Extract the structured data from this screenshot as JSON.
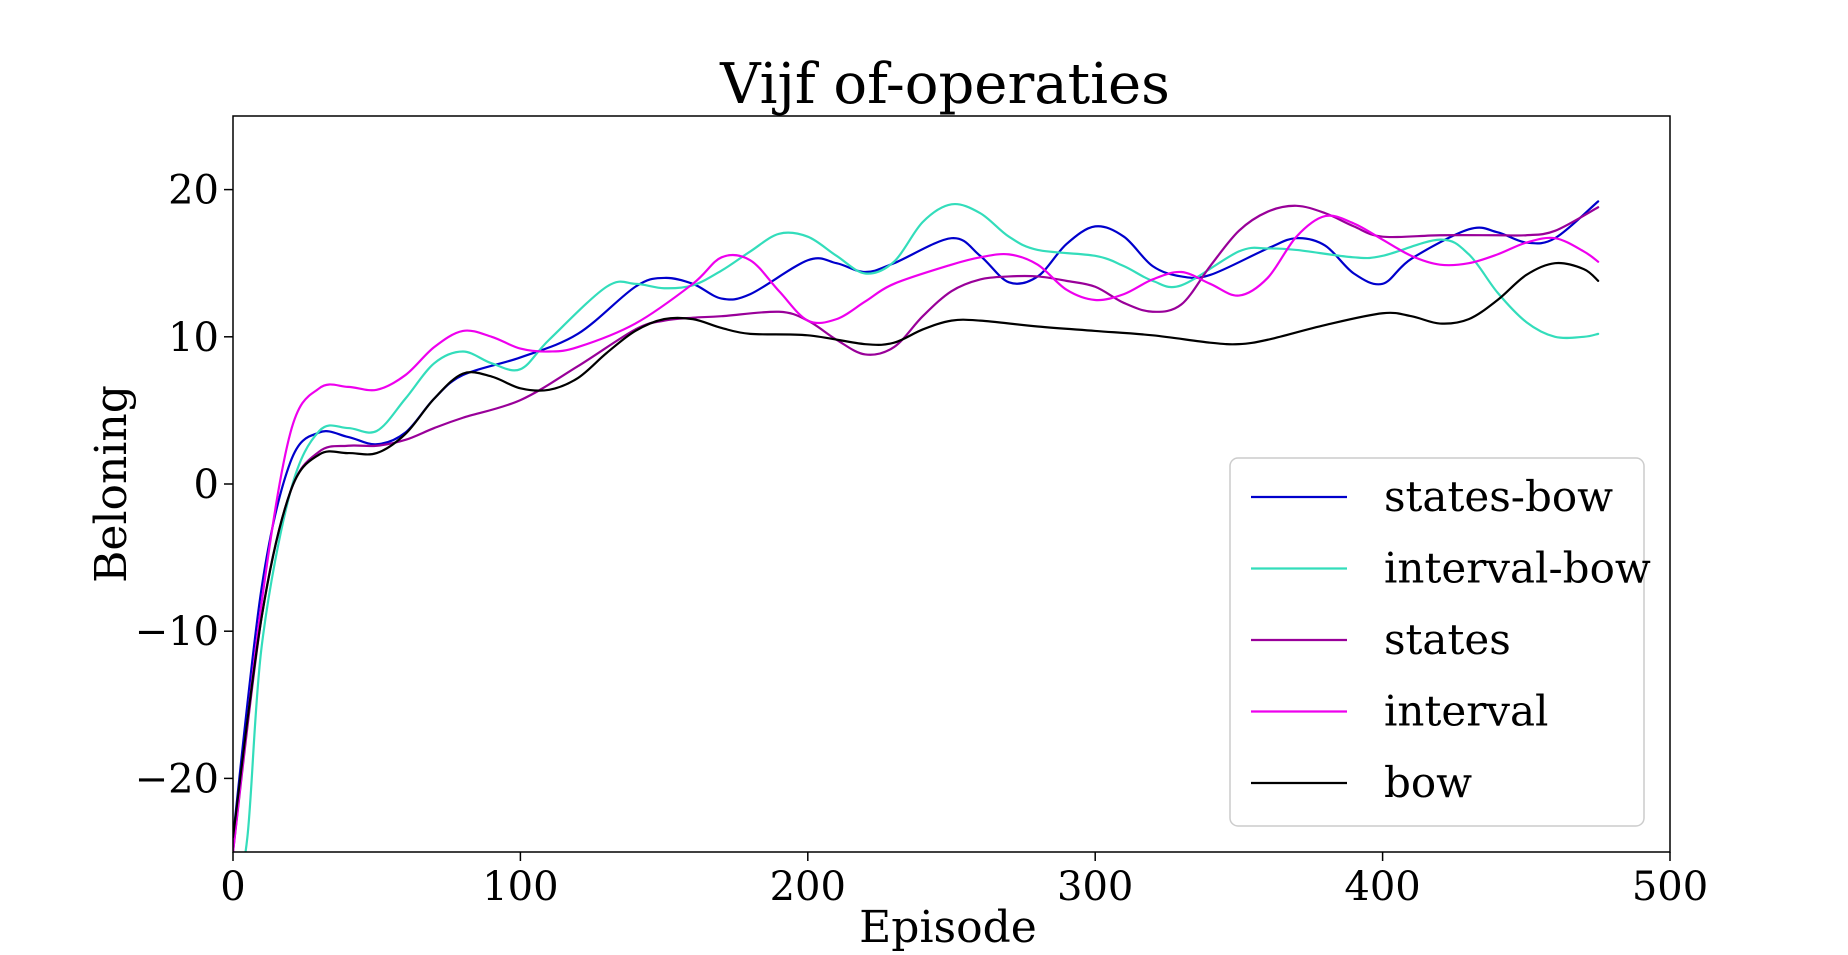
{
  "chart_data": {
    "type": "line",
    "title": "Vijf of-operaties",
    "xlabel": "Episode",
    "ylabel": "Beloning",
    "xlim": [
      0,
      500
    ],
    "ylim": [
      -25,
      25
    ],
    "xticks": [
      "0",
      "100",
      "200",
      "300",
      "400",
      "500"
    ],
    "xtick_values": [
      0,
      100,
      200,
      300,
      400,
      500
    ],
    "yticks": [
      "−20",
      "−10",
      "0",
      "10",
      "20"
    ],
    "ytick_values": [
      -20,
      -10,
      0,
      10,
      20
    ],
    "grid": false,
    "legend_position": "lower-right",
    "series": [
      {
        "name": "states-bow",
        "color": "#0000cc",
        "points": [
          [
            0,
            -24
          ],
          [
            10,
            -7
          ],
          [
            20,
            1.5
          ],
          [
            30,
            3.5
          ],
          [
            40,
            3.2
          ],
          [
            50,
            2.7
          ],
          [
            60,
            3.5
          ],
          [
            70,
            5.8
          ],
          [
            80,
            7.4
          ],
          [
            100,
            8.6
          ],
          [
            120,
            10.2
          ],
          [
            140,
            13.4
          ],
          [
            150,
            14
          ],
          [
            160,
            13.6
          ],
          [
            170,
            12.6
          ],
          [
            180,
            12.9
          ],
          [
            200,
            15.2
          ],
          [
            210,
            15
          ],
          [
            220,
            14.4
          ],
          [
            230,
            15
          ],
          [
            250,
            16.7
          ],
          [
            260,
            15.5
          ],
          [
            270,
            13.7
          ],
          [
            280,
            14.1
          ],
          [
            290,
            16.3
          ],
          [
            300,
            17.5
          ],
          [
            310,
            16.8
          ],
          [
            320,
            14.8
          ],
          [
            330,
            14.1
          ],
          [
            340,
            14.2
          ],
          [
            360,
            16
          ],
          [
            370,
            16.7
          ],
          [
            380,
            16.2
          ],
          [
            390,
            14.3
          ],
          [
            400,
            13.6
          ],
          [
            410,
            15.3
          ],
          [
            430,
            17.3
          ],
          [
            440,
            17.1
          ],
          [
            450,
            16.4
          ],
          [
            460,
            16.7
          ],
          [
            475,
            19.2
          ]
        ]
      },
      {
        "name": "interval-bow",
        "color": "#33ddbb",
        "points": [
          [
            0,
            -29
          ],
          [
            5,
            -24
          ],
          [
            10,
            -11
          ],
          [
            20,
            -0.5
          ],
          [
            30,
            3.6
          ],
          [
            40,
            3.8
          ],
          [
            50,
            3.6
          ],
          [
            60,
            5.8
          ],
          [
            70,
            8.2
          ],
          [
            80,
            9
          ],
          [
            90,
            8.2
          ],
          [
            100,
            7.8
          ],
          [
            110,
            9.8
          ],
          [
            130,
            13.4
          ],
          [
            140,
            13.6
          ],
          [
            150,
            13.3
          ],
          [
            160,
            13.5
          ],
          [
            170,
            14.5
          ],
          [
            180,
            15.8
          ],
          [
            190,
            17
          ],
          [
            200,
            16.8
          ],
          [
            210,
            15.5
          ],
          [
            220,
            14.3
          ],
          [
            230,
            15.1
          ],
          [
            240,
            17.8
          ],
          [
            250,
            19
          ],
          [
            260,
            18.4
          ],
          [
            270,
            16.8
          ],
          [
            280,
            15.9
          ],
          [
            300,
            15.5
          ],
          [
            310,
            14.8
          ],
          [
            320,
            13.8
          ],
          [
            330,
            13.5
          ],
          [
            350,
            15.8
          ],
          [
            360,
            16
          ],
          [
            370,
            15.9
          ],
          [
            390,
            15.4
          ],
          [
            400,
            15.5
          ],
          [
            420,
            16.6
          ],
          [
            430,
            15.6
          ],
          [
            440,
            13
          ],
          [
            450,
            11
          ],
          [
            460,
            10
          ],
          [
            470,
            10
          ],
          [
            475,
            10.2
          ]
        ]
      },
      {
        "name": "states",
        "color": "#990099",
        "points": [
          [
            0,
            -25
          ],
          [
            10,
            -9
          ],
          [
            20,
            -0.5
          ],
          [
            30,
            2.2
          ],
          [
            40,
            2.6
          ],
          [
            50,
            2.6
          ],
          [
            60,
            3
          ],
          [
            70,
            3.8
          ],
          [
            80,
            4.5
          ],
          [
            100,
            5.7
          ],
          [
            120,
            8
          ],
          [
            140,
            10.5
          ],
          [
            150,
            11.1
          ],
          [
            160,
            11.3
          ],
          [
            170,
            11.4
          ],
          [
            190,
            11.7
          ],
          [
            200,
            11.1
          ],
          [
            210,
            9.8
          ],
          [
            220,
            8.8
          ],
          [
            230,
            9.3
          ],
          [
            240,
            11.4
          ],
          [
            250,
            13.1
          ],
          [
            260,
            13.9
          ],
          [
            270,
            14.1
          ],
          [
            280,
            14.1
          ],
          [
            290,
            13.8
          ],
          [
            300,
            13.4
          ],
          [
            310,
            12.3
          ],
          [
            320,
            11.7
          ],
          [
            330,
            12.2
          ],
          [
            340,
            14.8
          ],
          [
            350,
            17.2
          ],
          [
            360,
            18.5
          ],
          [
            370,
            18.9
          ],
          [
            380,
            18.4
          ],
          [
            390,
            17.5
          ],
          [
            400,
            16.8
          ],
          [
            420,
            16.9
          ],
          [
            440,
            16.9
          ],
          [
            450,
            16.9
          ],
          [
            460,
            17.2
          ],
          [
            475,
            18.8
          ]
        ]
      },
      {
        "name": "interval",
        "color": "#ee00ee",
        "points": [
          [
            0,
            -25
          ],
          [
            10,
            -8
          ],
          [
            20,
            3.5
          ],
          [
            30,
            6.5
          ],
          [
            40,
            6.6
          ],
          [
            50,
            6.4
          ],
          [
            60,
            7.4
          ],
          [
            70,
            9.3
          ],
          [
            80,
            10.4
          ],
          [
            90,
            10
          ],
          [
            100,
            9.2
          ],
          [
            110,
            9
          ],
          [
            120,
            9.3
          ],
          [
            140,
            10.9
          ],
          [
            160,
            13.6
          ],
          [
            170,
            15.4
          ],
          [
            180,
            15.2
          ],
          [
            190,
            13.1
          ],
          [
            200,
            11.1
          ],
          [
            210,
            11.2
          ],
          [
            220,
            12.4
          ],
          [
            230,
            13.6
          ],
          [
            250,
            14.9
          ],
          [
            260,
            15.4
          ],
          [
            270,
            15.6
          ],
          [
            280,
            14.9
          ],
          [
            290,
            13.2
          ],
          [
            300,
            12.5
          ],
          [
            310,
            12.9
          ],
          [
            320,
            13.9
          ],
          [
            330,
            14.4
          ],
          [
            340,
            13.6
          ],
          [
            350,
            12.8
          ],
          [
            360,
            14
          ],
          [
            370,
            16.8
          ],
          [
            380,
            18.2
          ],
          [
            390,
            17.7
          ],
          [
            400,
            16.6
          ],
          [
            410,
            15.5
          ],
          [
            420,
            14.9
          ],
          [
            430,
            15
          ],
          [
            440,
            15.6
          ],
          [
            450,
            16.4
          ],
          [
            460,
            16.7
          ],
          [
            470,
            15.8
          ],
          [
            475,
            15.1
          ]
        ]
      },
      {
        "name": "bow",
        "color": "#000000",
        "points": [
          [
            0,
            -24
          ],
          [
            10,
            -9
          ],
          [
            20,
            -0.5
          ],
          [
            30,
            2
          ],
          [
            40,
            2.1
          ],
          [
            50,
            2.1
          ],
          [
            60,
            3.4
          ],
          [
            70,
            5.8
          ],
          [
            80,
            7.5
          ],
          [
            90,
            7.3
          ],
          [
            100,
            6.5
          ],
          [
            110,
            6.4
          ],
          [
            120,
            7.2
          ],
          [
            130,
            8.9
          ],
          [
            140,
            10.4
          ],
          [
            150,
            11.2
          ],
          [
            160,
            11.2
          ],
          [
            170,
            10.6
          ],
          [
            180,
            10.2
          ],
          [
            200,
            10.1
          ],
          [
            220,
            9.5
          ],
          [
            230,
            9.6
          ],
          [
            240,
            10.5
          ],
          [
            250,
            11.1
          ],
          [
            260,
            11.1
          ],
          [
            280,
            10.7
          ],
          [
            300,
            10.4
          ],
          [
            320,
            10.1
          ],
          [
            340,
            9.6
          ],
          [
            350,
            9.5
          ],
          [
            360,
            9.8
          ],
          [
            380,
            10.8
          ],
          [
            400,
            11.6
          ],
          [
            410,
            11.4
          ],
          [
            420,
            10.9
          ],
          [
            430,
            11.2
          ],
          [
            440,
            12.5
          ],
          [
            450,
            14.2
          ],
          [
            460,
            15
          ],
          [
            470,
            14.6
          ],
          [
            475,
            13.8
          ]
        ]
      }
    ]
  }
}
